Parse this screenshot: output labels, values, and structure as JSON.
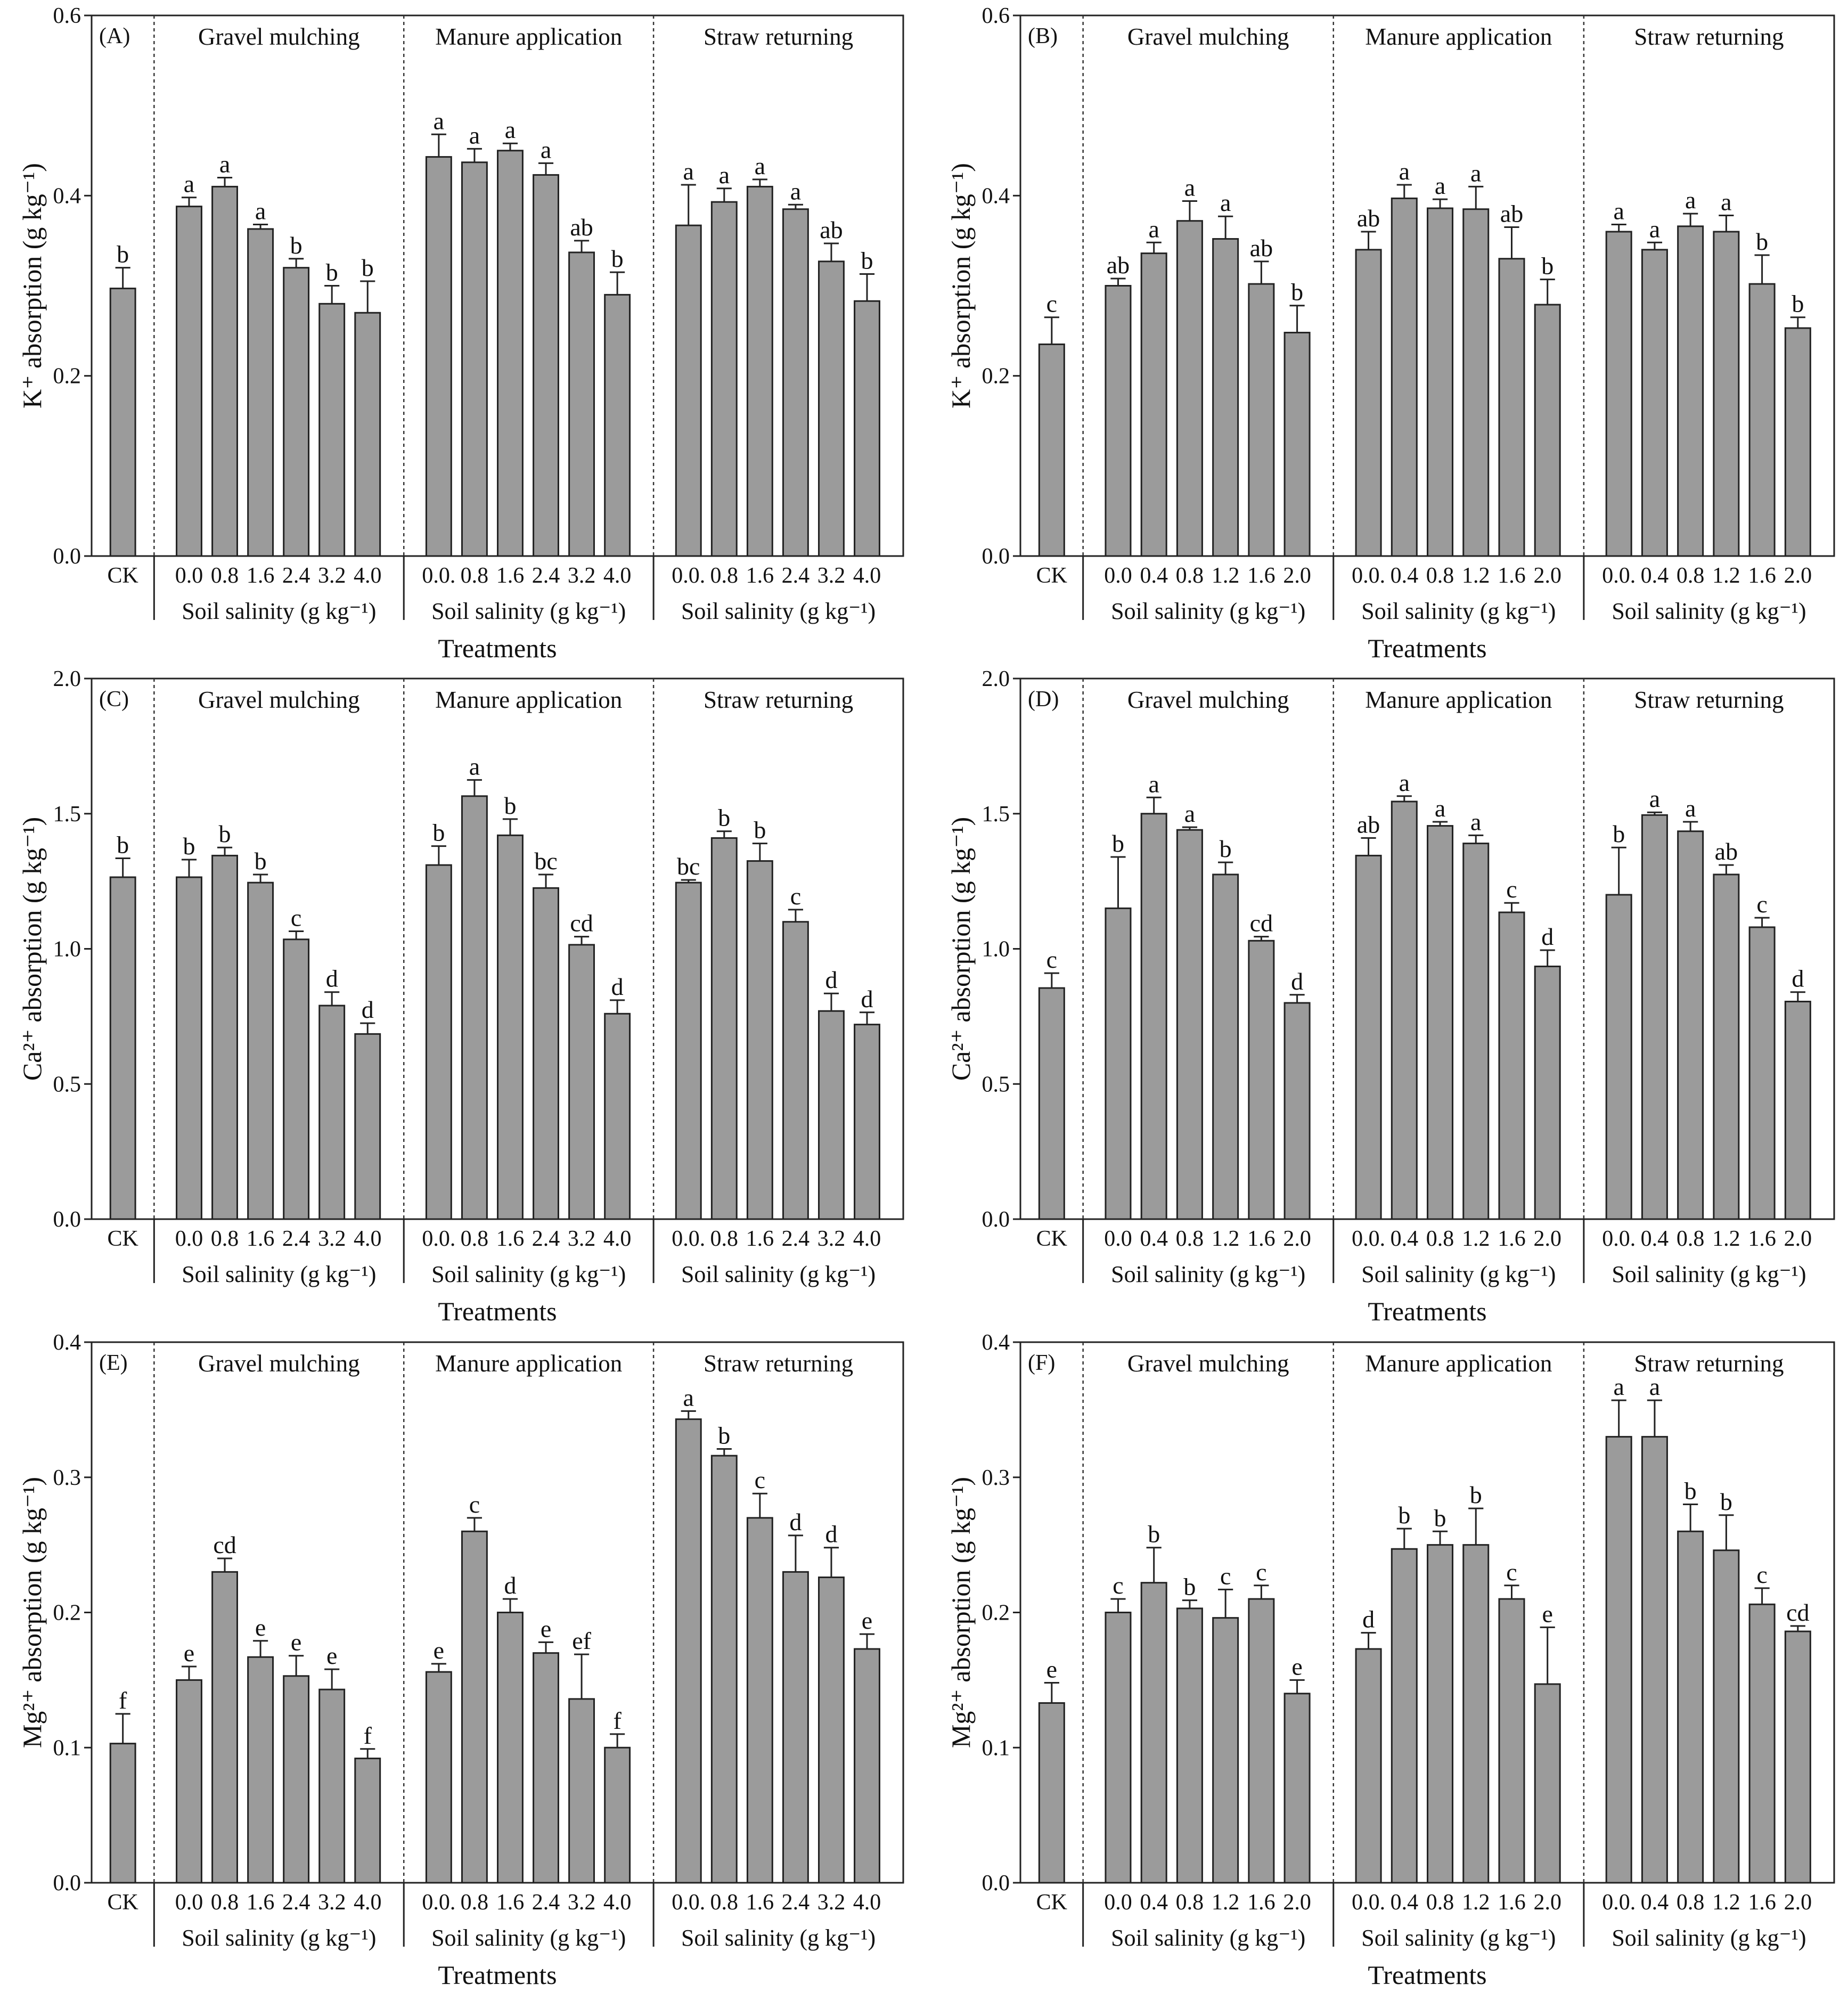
{
  "chart_data": [
    {
      "type": "bar",
      "panel": "(A)",
      "ylabel": "K⁺ absorption (g kg⁻¹)",
      "xlabel": "Treatments",
      "color": "#9b9b9b",
      "ylim": [
        0,
        0.6
      ],
      "yticks": [
        {
          "value": 0,
          "label": "0.0"
        },
        0.2,
        0.4,
        0.6
      ],
      "groups": [
        {
          "name": "Gravel mulching",
          "label": "Soil salinity (g kg⁻¹)"
        },
        {
          "name": "Manure application",
          "label": "Soil salinity (g kg⁻¹)"
        },
        {
          "name": "Straw returning",
          "label": "Soil salinity (g kg⁻¹)"
        }
      ],
      "categories": [
        "CK",
        "0.0",
        "0.8",
        "1.6",
        "2.4",
        "3.2",
        "4.0",
        "0.0.",
        "0.8",
        "1.6",
        "2.4",
        "3.2",
        "4.0",
        "0.0.",
        "0.8",
        "1.6",
        "2.4",
        "3.2",
        "4.0"
      ],
      "values": [
        0.297,
        0.388,
        0.41,
        0.363,
        0.32,
        0.28,
        0.27,
        0.443,
        0.437,
        0.45,
        0.423,
        0.337,
        0.29,
        0.367,
        0.393,
        0.41,
        0.385,
        0.327,
        0.283
      ],
      "errors": [
        0.023,
        0.01,
        0.01,
        0.005,
        0.01,
        0.02,
        0.035,
        0.025,
        0.015,
        0.008,
        0.013,
        0.013,
        0.025,
        0.045,
        0.015,
        0.008,
        0.005,
        0.02,
        0.03
      ],
      "letters": [
        "b",
        "a",
        "a",
        "a",
        "b",
        "b",
        "b",
        "a",
        "a",
        "a",
        "a",
        "ab",
        "b",
        "a",
        "a",
        "a",
        "a",
        "ab",
        "b"
      ]
    },
    {
      "type": "bar",
      "panel": "(B)",
      "ylabel": "K⁺ absorption (g kg⁻¹)",
      "xlabel": "Treatments",
      "color": "#9b9b9b",
      "ylim": [
        0,
        0.6
      ],
      "yticks": [
        {
          "value": 0,
          "label": "0.0"
        },
        0.2,
        0.4,
        0.6
      ],
      "groups": [
        {
          "name": "Gravel mulching",
          "label": "Soil salinity (g kg⁻¹)"
        },
        {
          "name": "Manure application",
          "label": "Soil salinity (g kg⁻¹)"
        },
        {
          "name": "Straw returning",
          "label": "Soil salinity (g kg⁻¹)"
        }
      ],
      "categories": [
        "CK",
        "0.0",
        "0.4",
        "0.8",
        "1.2",
        "1.6",
        "2.0",
        "0.0.",
        "0.4",
        "0.8",
        "1.2",
        "1.6",
        "2.0",
        "0.0.",
        "0.4",
        "0.8",
        "1.2",
        "1.6",
        "2.0"
      ],
      "values": [
        0.235,
        0.3,
        0.336,
        0.372,
        0.352,
        0.302,
        0.248,
        0.34,
        0.397,
        0.386,
        0.385,
        0.33,
        0.279,
        0.36,
        0.34,
        0.366,
        0.36,
        0.302,
        0.253
      ],
      "errors": [
        0.03,
        0.008,
        0.012,
        0.022,
        0.025,
        0.025,
        0.03,
        0.02,
        0.015,
        0.01,
        0.025,
        0.035,
        0.028,
        0.008,
        0.008,
        0.014,
        0.018,
        0.032,
        0.012
      ],
      "letters": [
        "c",
        "ab",
        "a",
        "a",
        "a",
        "ab",
        "b",
        "ab",
        "a",
        "a",
        "a",
        "ab",
        "b",
        "a",
        "a",
        "a",
        "a",
        "b",
        "b"
      ]
    },
    {
      "type": "bar",
      "panel": "(C)",
      "ylabel": "Ca²⁺ absorption (g kg⁻¹)",
      "xlabel": "Treatments",
      "color": "#9b9b9b",
      "ylim": [
        0,
        2.0
      ],
      "yticks": [
        {
          "value": 0,
          "label": "0.0"
        },
        0.5,
        {
          "value": 1,
          "label": "1.0"
        },
        1.5,
        {
          "value": 2,
          "label": "2.0"
        }
      ],
      "groups": [
        {
          "name": "Gravel mulching",
          "label": "Soil salinity (g kg⁻¹)"
        },
        {
          "name": "Manure application",
          "label": "Soil salinity (g kg⁻¹)"
        },
        {
          "name": "Straw returning",
          "label": "Soil salinity (g kg⁻¹)"
        }
      ],
      "categories": [
        "CK",
        "0.0",
        "0.8",
        "1.6",
        "2.4",
        "3.2",
        "4.0",
        "0.0.",
        "0.8",
        "1.6",
        "2.4",
        "3.2",
        "4.0",
        "0.0.",
        "0.8",
        "1.6",
        "2.4",
        "3.2",
        "4.0"
      ],
      "values": [
        1.265,
        1.265,
        1.345,
        1.245,
        1.035,
        0.79,
        0.685,
        1.31,
        1.565,
        1.42,
        1.225,
        1.015,
        0.76,
        1.245,
        1.41,
        1.325,
        1.1,
        0.77,
        0.72
      ],
      "errors": [
        0.07,
        0.065,
        0.03,
        0.03,
        0.03,
        0.05,
        0.04,
        0.07,
        0.06,
        0.06,
        0.05,
        0.03,
        0.05,
        0.01,
        0.025,
        0.065,
        0.045,
        0.065,
        0.045
      ],
      "letters": [
        "b",
        "b",
        "b",
        "b",
        "c",
        "d",
        "d",
        "b",
        "a",
        "b",
        "bc",
        "cd",
        "d",
        "bc",
        "b",
        "b",
        "c",
        "d",
        "d"
      ]
    },
    {
      "type": "bar",
      "panel": "(D)",
      "ylabel": "Ca²⁺ absorption (g kg⁻¹)",
      "xlabel": "Treatments",
      "color": "#9b9b9b",
      "ylim": [
        0,
        2.0
      ],
      "yticks": [
        {
          "value": 0,
          "label": "0.0"
        },
        0.5,
        {
          "value": 1,
          "label": "1.0"
        },
        1.5,
        {
          "value": 2,
          "label": "2.0"
        }
      ],
      "groups": [
        {
          "name": "Gravel mulching",
          "label": "Soil salinity (g kg⁻¹)"
        },
        {
          "name": "Manure application",
          "label": "Soil salinity (g kg⁻¹)"
        },
        {
          "name": "Straw returning",
          "label": "Soil salinity (g kg⁻¹)"
        }
      ],
      "categories": [
        "CK",
        "0.0",
        "0.4",
        "0.8",
        "1.2",
        "1.6",
        "2.0",
        "0.0.",
        "0.4",
        "0.8",
        "1.2",
        "1.6",
        "2.0",
        "0.0.",
        "0.4",
        "0.8",
        "1.2",
        "1.6",
        "2.0"
      ],
      "values": [
        0.855,
        1.15,
        1.5,
        1.44,
        1.275,
        1.03,
        0.8,
        1.345,
        1.545,
        1.455,
        1.39,
        1.135,
        0.935,
        1.2,
        1.495,
        1.435,
        1.275,
        1.08,
        0.805
      ],
      "errors": [
        0.055,
        0.19,
        0.06,
        0.01,
        0.045,
        0.015,
        0.03,
        0.065,
        0.02,
        0.015,
        0.03,
        0.035,
        0.06,
        0.175,
        0.01,
        0.035,
        0.035,
        0.035,
        0.035
      ],
      "letters": [
        "c",
        "b",
        "a",
        "a",
        "b",
        "cd",
        "d",
        "ab",
        "a",
        "a",
        "a",
        "c",
        "d",
        "b",
        "a",
        "a",
        "ab",
        "c",
        "d"
      ]
    },
    {
      "type": "bar",
      "panel": "(E)",
      "ylabel": "Mg²⁺ absorption (g kg⁻¹)",
      "xlabel": "Treatments",
      "color": "#9b9b9b",
      "ylim": [
        0,
        0.4
      ],
      "yticks": [
        {
          "value": 0,
          "label": "0.0"
        },
        0.1,
        0.2,
        0.3,
        0.4
      ],
      "groups": [
        {
          "name": "Gravel mulching",
          "label": "Soil salinity (g kg⁻¹)"
        },
        {
          "name": "Manure application",
          "label": "Soil salinity (g kg⁻¹)"
        },
        {
          "name": "Straw returning",
          "label": "Soil salinity (g kg⁻¹)"
        }
      ],
      "categories": [
        "CK",
        "0.0",
        "0.8",
        "1.6",
        "2.4",
        "3.2",
        "4.0",
        "0.0.",
        "0.8",
        "1.6",
        "2.4",
        "3.2",
        "4.0",
        "0.0.",
        "0.8",
        "1.6",
        "2.4",
        "3.2",
        "4.0"
      ],
      "values": [
        0.103,
        0.15,
        0.23,
        0.167,
        0.153,
        0.143,
        0.092,
        0.156,
        0.26,
        0.2,
        0.17,
        0.136,
        0.1,
        0.343,
        0.316,
        0.27,
        0.23,
        0.226,
        0.173
      ],
      "errors": [
        0.022,
        0.01,
        0.01,
        0.012,
        0.015,
        0.015,
        0.007,
        0.006,
        0.01,
        0.01,
        0.008,
        0.033,
        0.01,
        0.006,
        0.005,
        0.018,
        0.027,
        0.022,
        0.011
      ],
      "letters": [
        "f",
        "e",
        "cd",
        "e",
        "e",
        "e",
        "f",
        "e",
        "c",
        "d",
        "e",
        "ef",
        "f",
        "a",
        "b",
        "c",
        "d",
        "d",
        "e"
      ]
    },
    {
      "type": "bar",
      "panel": "(F)",
      "ylabel": "Mg²⁺ absorption (g kg⁻¹)",
      "xlabel": "Treatments",
      "color": "#9b9b9b",
      "ylim": [
        0,
        0.4
      ],
      "yticks": [
        {
          "value": 0,
          "label": "0.0"
        },
        0.1,
        0.2,
        0.3,
        0.4
      ],
      "groups": [
        {
          "name": "Gravel mulching",
          "label": "Soil salinity (g kg⁻¹)"
        },
        {
          "name": "Manure application",
          "label": "Soil salinity (g kg⁻¹)"
        },
        {
          "name": "Straw returning",
          "label": "Soil salinity (g kg⁻¹)"
        }
      ],
      "categories": [
        "CK",
        "0.0",
        "0.4",
        "0.8",
        "1.2",
        "1.6",
        "2.0",
        "0.0.",
        "0.4",
        "0.8",
        "1.2",
        "1.6",
        "2.0",
        "0.0.",
        "0.4",
        "0.8",
        "1.2",
        "1.6",
        "2.0"
      ],
      "values": [
        0.133,
        0.2,
        0.222,
        0.203,
        0.196,
        0.21,
        0.14,
        0.173,
        0.247,
        0.25,
        0.25,
        0.21,
        0.147,
        0.33,
        0.33,
        0.26,
        0.246,
        0.206,
        0.186
      ],
      "errors": [
        0.015,
        0.01,
        0.026,
        0.006,
        0.021,
        0.01,
        0.01,
        0.012,
        0.015,
        0.01,
        0.027,
        0.01,
        0.042,
        0.027,
        0.027,
        0.02,
        0.026,
        0.012,
        0.004
      ],
      "letters": [
        "e",
        "c",
        "b",
        "b",
        "c",
        "c",
        "e",
        "d",
        "b",
        "b",
        "b",
        "c",
        "e",
        "a",
        "a",
        "b",
        "b",
        "c",
        "cd"
      ]
    }
  ]
}
